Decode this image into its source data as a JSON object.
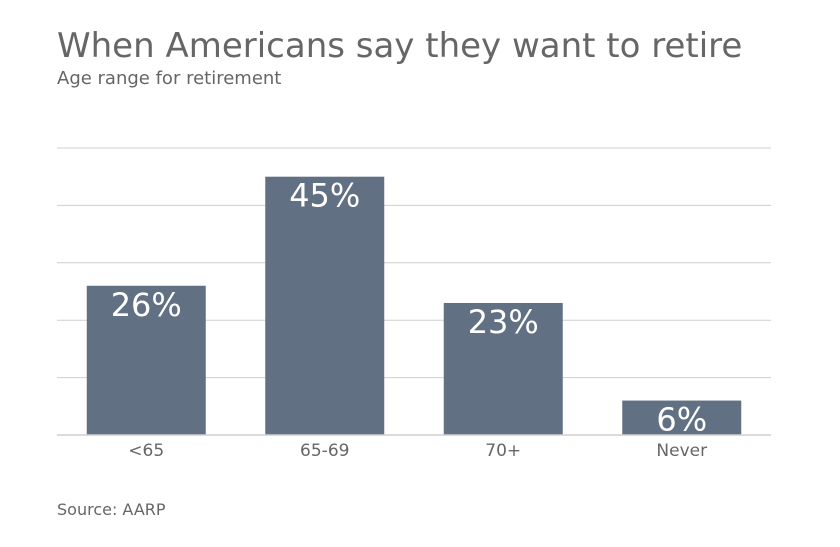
{
  "title": "When Americans say they want to retire",
  "subtitle": "Age range for retirement",
  "source": "Source: AARP",
  "colors": {
    "bar": "#627083",
    "grid": "#cfcfcf",
    "text": "#666666",
    "label": "#ffffff"
  },
  "chart_data": {
    "type": "bar",
    "categories": [
      "<65",
      "65-69",
      "70+",
      "Never"
    ],
    "values": [
      26,
      45,
      23,
      6
    ],
    "data_labels": [
      "26%",
      "45%",
      "23%",
      "6%"
    ],
    "title": "When Americans say they want to retire",
    "subtitle": "Age range for retirement",
    "xlabel": "",
    "ylabel": "",
    "ylim": [
      0,
      50
    ],
    "grid": true,
    "legend": "none"
  }
}
